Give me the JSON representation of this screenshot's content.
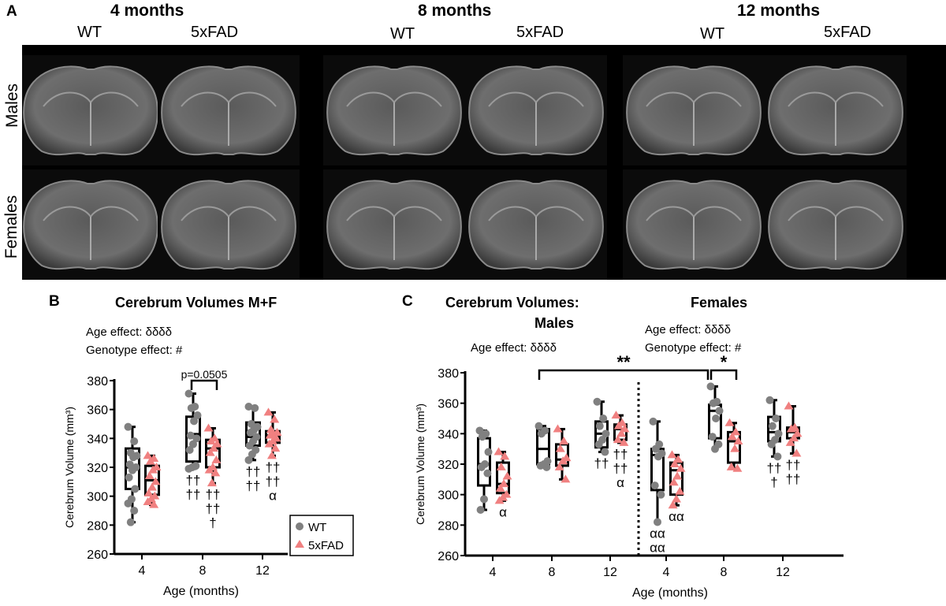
{
  "panel_a": {
    "label": "A",
    "ages": [
      "4 months",
      "8 months",
      "12 months"
    ],
    "genotypes": [
      "WT",
      "5xFAD",
      "WT",
      "5xFAD",
      "WT",
      "5xFAD"
    ],
    "rows": [
      "Males",
      "Females"
    ]
  },
  "panel_b": {
    "label": "B",
    "title": "Cerebrum Volumes M+F",
    "effects": [
      "Age effect: δδδδ",
      "Genotype effect: #"
    ],
    "sig": "p=0.0505"
  },
  "panel_c": {
    "label": "C",
    "title_left": "Cerebrum Volumes:",
    "title_males": "Males",
    "title_females": "Females",
    "males_effects": [
      "Age effect: δδδδ"
    ],
    "females_effects": [
      "Age effect: δδδδ",
      "Genotype effect: #"
    ],
    "sig_long": "**",
    "sig_short": "*"
  },
  "legend": {
    "wt": "WT",
    "fad": "5xFAD"
  },
  "colors": {
    "wt": "#808080",
    "fad": "#f08080"
  },
  "chart_data": [
    {
      "type": "box",
      "id": "B",
      "title": "Cerebrum Volumes M+F",
      "xlabel": "Age (months)",
      "ylabel": "Cerebrum Volume (mm³)",
      "ylim": [
        260,
        380
      ],
      "yticks": [
        260,
        280,
        300,
        320,
        340,
        360,
        380
      ],
      "categories": [
        "4",
        "8",
        "12"
      ],
      "series": [
        {
          "name": "WT",
          "groups": [
            {
              "box": [
                282,
                305,
                320,
                333,
                348
              ],
              "points": [
                348,
                338,
                330,
                328,
                327,
                322,
                320,
                318,
                313,
                305,
                298,
                295,
                290,
                282
              ],
              "marks": []
            },
            {
              "box": [
                319,
                324,
                343,
                355,
                371
              ],
              "points": [
                371,
                362,
                361,
                356,
                352,
                342,
                340,
                336,
                332,
                321,
                320,
                319
              ],
              "marks": [
                "††",
                "††"
              ]
            },
            {
              "box": [
                325,
                335,
                341,
                351,
                362
              ],
              "points": [
                362,
                361,
                350,
                348,
                346,
                344,
                341,
                338,
                335,
                332,
                329,
                325
              ],
              "marks": [
                "††",
                "††"
              ]
            }
          ]
        },
        {
          "name": "5xFAD",
          "groups": [
            {
              "box": [
                294,
                301,
                311,
                321,
                328
              ],
              "points": [
                328,
                326,
                324,
                320,
                318,
                314,
                310,
                306,
                302,
                300,
                298,
                296,
                294
              ],
              "marks": []
            },
            {
              "box": [
                309,
                320,
                333,
                339,
                347
              ],
              "points": [
                347,
                340,
                338,
                336,
                333,
                330,
                325,
                320,
                318,
                316,
                309
              ],
              "marks": [
                "††",
                "††",
                "†"
              ]
            },
            {
              "box": [
                328,
                337,
                342,
                345,
                358
              ],
              "points": [
                358,
                353,
                346,
                344,
                343,
                342,
                340,
                338,
                336,
                333,
                328
              ],
              "marks": [
                "††",
                "††",
                "α"
              ]
            }
          ]
        }
      ]
    },
    {
      "type": "box",
      "id": "C",
      "title": "Cerebrum Volumes: Males / Females",
      "xlabel": "Age (months)",
      "ylabel": "Cerebrum Volume (mm³)",
      "ylim": [
        260,
        380
      ],
      "yticks": [
        260,
        280,
        300,
        320,
        340,
        360,
        380
      ],
      "categories": [
        "4",
        "8",
        "12",
        "4",
        "8",
        "12"
      ],
      "series": [
        {
          "name": "WT",
          "groups": [
            {
              "box": [
                290,
                306,
                320,
                337,
                342
              ],
              "points": [
                342,
                340,
                338,
                328,
                320,
                318,
                314,
                297,
                290
              ],
              "marks": []
            },
            {
              "box": [
                318,
                320,
                330,
                343,
                345
              ],
              "points": [
                345,
                342,
                340,
                322,
                320,
                319,
                318
              ],
              "marks": []
            },
            {
              "box": [
                328,
                331,
                340,
                348,
                361
              ],
              "points": [
                361,
                350,
                345,
                340,
                336,
                333,
                328
              ],
              "marks": [
                "††"
              ]
            },
            {
              "box": [
                282,
                303,
                326,
                330,
                348
              ],
              "points": [
                348,
                333,
                330,
                327,
                325,
                306,
                300,
                282
              ],
              "marks": [
                "αα",
                "αα"
              ]
            },
            {
              "box": [
                330,
                337,
                355,
                359,
                371
              ],
              "points": [
                371,
                361,
                360,
                355,
                350,
                338,
                333,
                330
              ],
              "marks": []
            },
            {
              "box": [
                325,
                335,
                341,
                351,
                362
              ],
              "points": [
                362,
                350,
                345,
                340,
                336,
                333,
                325
              ],
              "marks": [
                "††",
                "†"
              ]
            }
          ]
        },
        {
          "name": "5xFAD",
          "groups": [
            {
              "box": [
                296,
                301,
                307,
                321,
                328
              ],
              "points": [
                328,
                325,
                318,
                312,
                307,
                304,
                300,
                298,
                296
              ],
              "marks": [
                "α"
              ]
            },
            {
              "box": [
                310,
                319,
                323,
                333,
                343
              ],
              "points": [
                343,
                335,
                330,
                324,
                322,
                318,
                310
              ],
              "marks": []
            },
            {
              "box": [
                334,
                336,
                343,
                346,
                352
              ],
              "points": [
                352,
                347,
                345,
                343,
                340,
                336,
                334
              ],
              "marks": [
                "††",
                "††",
                "α"
              ]
            },
            {
              "box": [
                293,
                300,
                316,
                321,
                326
              ],
              "points": [
                326,
                323,
                320,
                317,
                312,
                308,
                302,
                297,
                293
              ],
              "marks": [
                "αα"
              ]
            },
            {
              "box": [
                317,
                321,
                335,
                341,
                347
              ],
              "points": [
                347,
                341,
                338,
                335,
                330,
                318,
                317
              ],
              "marks": []
            },
            {
              "box": [
                327,
                337,
                341,
                344,
                358
              ],
              "points": [
                358,
                344,
                343,
                340,
                337,
                334,
                327
              ],
              "marks": [
                "††",
                "††"
              ]
            }
          ]
        }
      ]
    }
  ]
}
